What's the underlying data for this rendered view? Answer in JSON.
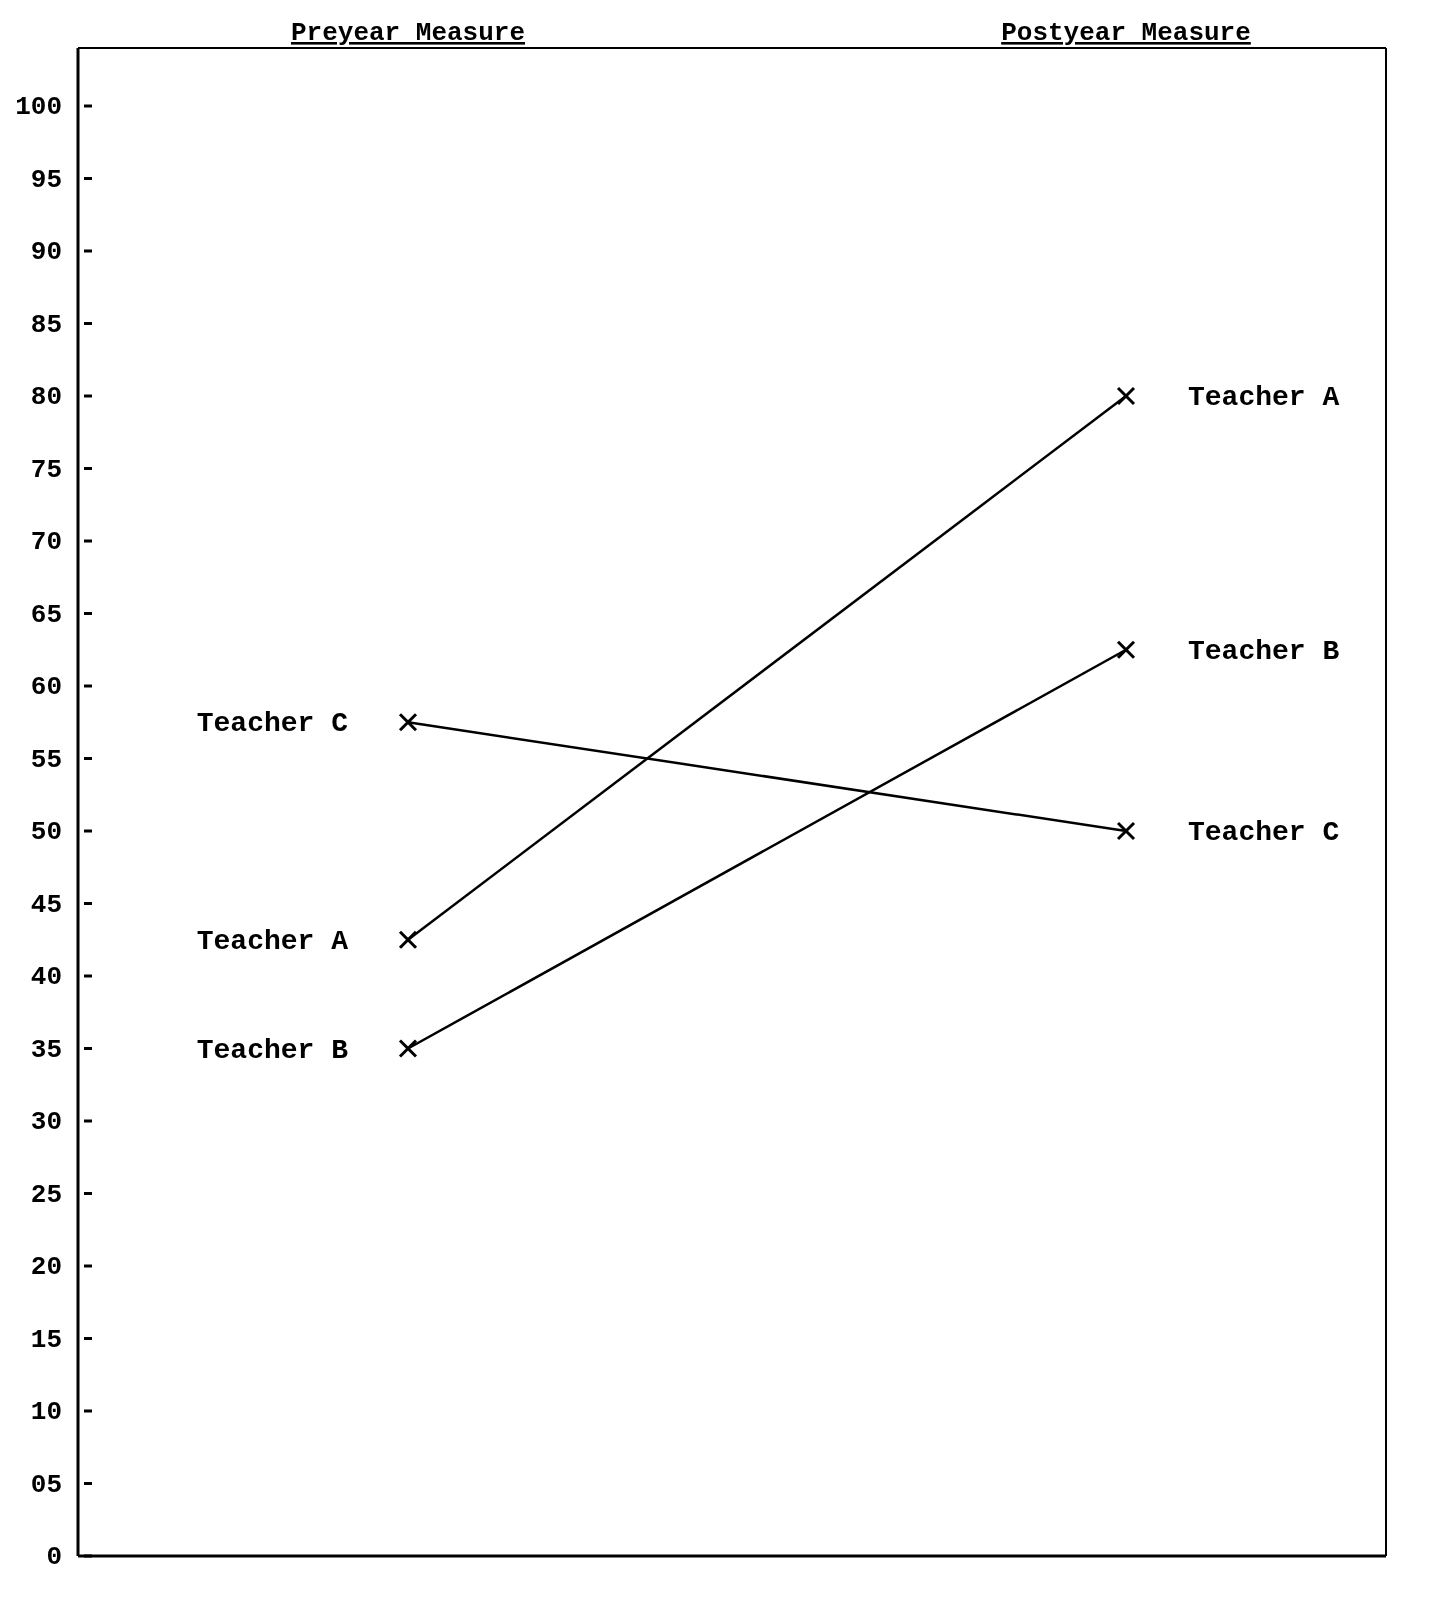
{
  "chart_data": {
    "type": "line",
    "categories": [
      "Preyear Measure",
      "Postyear Measure"
    ],
    "series": [
      {
        "name": "Teacher A",
        "color": "#000000",
        "values": [
          42.5,
          80
        ]
      },
      {
        "name": "Teacher B",
        "color": "#000000",
        "values": [
          35,
          62.5
        ]
      },
      {
        "name": "Teacher C",
        "color": "#000000",
        "values": [
          57.5,
          50
        ]
      }
    ],
    "ylim": [
      0,
      104
    ],
    "yticks": [
      0,
      {
        "value": 5,
        "label": "05"
      },
      10,
      15,
      20,
      25,
      30,
      35,
      40,
      45,
      50,
      55,
      60,
      65,
      70,
      75,
      80,
      85,
      90,
      95,
      100
    ],
    "marker": "cross",
    "line_style": "solid",
    "legend": false
  }
}
